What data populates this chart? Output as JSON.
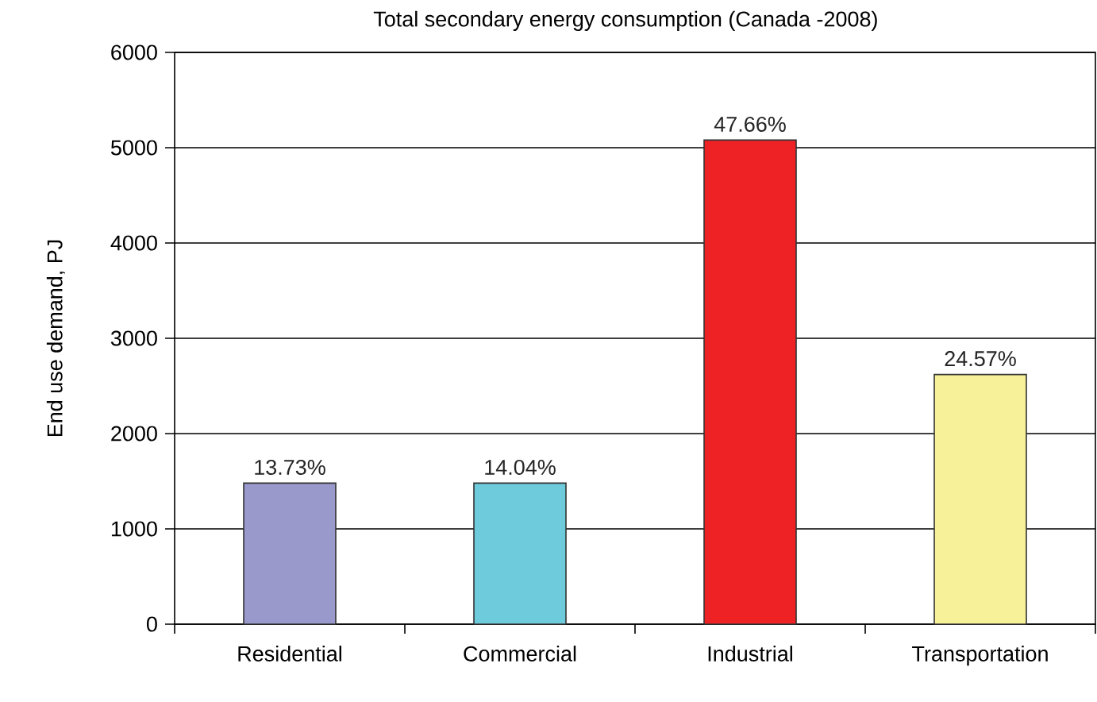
{
  "chart_data": {
    "type": "bar",
    "title": "Total secondary energy consumption (Canada -2008)",
    "ylabel": "End use demand, PJ",
    "categories": [
      "Residential",
      "Commercial",
      "Industrial",
      "Transportation"
    ],
    "values": [
      1480,
      1480,
      5080,
      2620
    ],
    "colors": [
      "#9999cc",
      "#6ecbdc",
      "#ee2225",
      "#f7f199"
    ],
    "annotations": [
      {
        "text": "13.73%",
        "x": "Residential",
        "y": 1480
      },
      {
        "text": "14.04%",
        "x": "Commercial",
        "y": 1480
      },
      {
        "text": "47.66%",
        "x": "Industrial",
        "y": 5080
      },
      {
        "text": "24.57%",
        "x": "Transportation",
        "y": 2620
      }
    ],
    "ylim": [
      0,
      6000
    ],
    "yticks": [
      0,
      1000,
      2000,
      3000,
      4000,
      5000,
      6000
    ],
    "grid": "y"
  }
}
